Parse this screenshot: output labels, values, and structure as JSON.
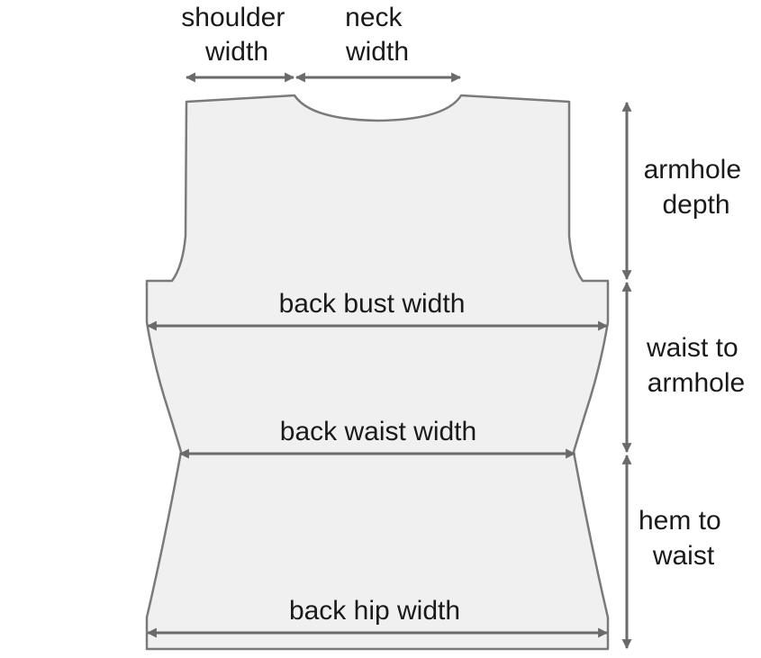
{
  "labels": {
    "shoulder_width": [
      "shoulder",
      "width"
    ],
    "neck_width": [
      "neck",
      "width"
    ],
    "armhole_depth": [
      "armhole",
      "depth"
    ],
    "waist_to_armhole": [
      "waist to",
      "armhole"
    ],
    "hem_to_waist": [
      "hem to",
      "waist"
    ],
    "back_bust_width": "back bust width",
    "back_waist_width": "back waist width",
    "back_hip_width": "back hip width"
  },
  "colors": {
    "garment_fill": "#f0f0f0",
    "garment_stroke": "#7a7a7a",
    "arrow": "#6a6a6a",
    "text": "#1a1a1a"
  }
}
